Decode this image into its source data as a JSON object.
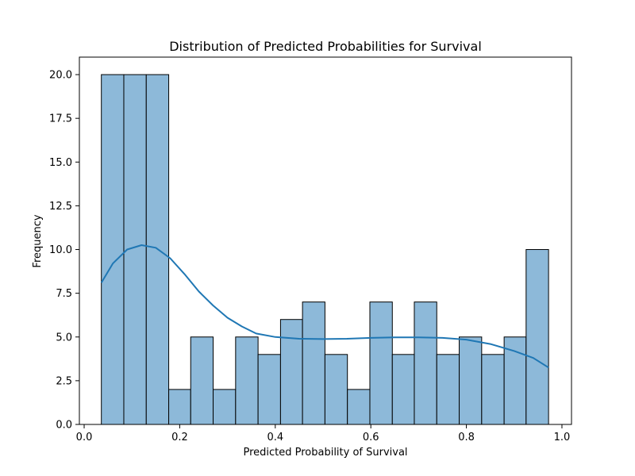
{
  "chart_data": {
    "type": "bar",
    "title": "Distribution of Predicted Probabilities for Survival",
    "xlabel": "Predicted Probability of Survival",
    "ylabel": "Frequency",
    "xlim": [
      -0.01,
      1.02
    ],
    "ylim": [
      0,
      21
    ],
    "x_ticks": [
      0.0,
      0.2,
      0.4,
      0.6,
      0.8,
      1.0
    ],
    "x_tick_labels": [
      "0.0",
      "0.2",
      "0.4",
      "0.6",
      "0.8",
      "1.0"
    ],
    "y_ticks": [
      0,
      2.5,
      5,
      7.5,
      10,
      12.5,
      15,
      17.5,
      20
    ],
    "y_tick_labels": [
      "0.0",
      "2.5",
      "5.0",
      "7.5",
      "10.0",
      "12.5",
      "15.0",
      "17.5",
      "20.0"
    ],
    "bin_edges": [
      0.036,
      0.083,
      0.13,
      0.177,
      0.223,
      0.27,
      0.317,
      0.364,
      0.411,
      0.457,
      0.504,
      0.551,
      0.598,
      0.645,
      0.691,
      0.738,
      0.785,
      0.832,
      0.879,
      0.925,
      0.972
    ],
    "values": [
      20,
      20,
      20,
      2,
      5,
      2,
      5,
      4,
      6,
      7,
      4,
      2,
      7,
      4,
      7,
      4,
      5,
      4,
      5,
      10
    ],
    "kde": {
      "x": [
        0.036,
        0.06,
        0.09,
        0.12,
        0.15,
        0.18,
        0.21,
        0.24,
        0.27,
        0.3,
        0.33,
        0.36,
        0.4,
        0.45,
        0.5,
        0.55,
        0.6,
        0.65,
        0.7,
        0.75,
        0.8,
        0.85,
        0.9,
        0.94,
        0.972
      ],
      "y": [
        8.1,
        9.2,
        10.0,
        10.25,
        10.1,
        9.5,
        8.6,
        7.6,
        6.8,
        6.1,
        5.6,
        5.2,
        5.0,
        4.9,
        4.88,
        4.9,
        4.95,
        4.98,
        4.98,
        4.95,
        4.85,
        4.6,
        4.2,
        3.8,
        3.25
      ]
    },
    "colors": {
      "bar_fill": "#8db9d9",
      "bar_edge": "#000000",
      "kde_line": "#1f77b4"
    },
    "grid": false
  }
}
